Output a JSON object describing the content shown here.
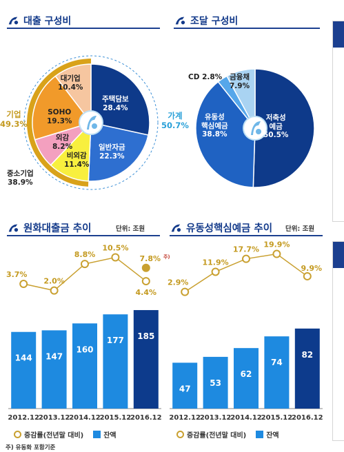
{
  "colors": {
    "navy": "#133a8a",
    "bar_blue": "#1e8ae0",
    "bar_last": "#0d3b8c",
    "gold": "#c9a030",
    "gold_text": "#c49a20",
    "pie1_housing": "#0e3a8a",
    "pie1_general": "#2e6fd0",
    "pie1_large": "#f6c6a0",
    "pie1_soho": "#f19a2a",
    "pie1_foreign": "#f3a0bf",
    "pie1_nonforeign": "#f8ef3e",
    "pie1_sme": "#d9a21a",
    "pie2_savings": "#0e3a8a",
    "pie2_liquid": "#1f62c2",
    "pie2_cd": "#56a7ea",
    "pie2_financial": "#a9d3f2"
  },
  "sections": {
    "loan_composition": {
      "title": "대출 구성비",
      "icon": "shinhan-logo-icon"
    },
    "funding_composition": {
      "title": "조달 구성비",
      "icon": "shinhan-logo-icon"
    },
    "krw_loan_trend": {
      "title": "원화대출금 추이",
      "unit": "단위: 조원",
      "icon": "shinhan-logo-icon"
    },
    "liquid_deposit_trend": {
      "title": "유동성핵심예금 추이",
      "unit": "단위: 조원",
      "icon": "shinhan-logo-icon"
    }
  },
  "legend": {
    "growth": "증감률(전년말 대비)",
    "balance": "잔액"
  },
  "footnote": "주) 유동화 포함기준",
  "chart_data": [
    {
      "type": "pie",
      "title": "대출 구성비",
      "slices": [
        {
          "label": "주택담보",
          "value": 28.4,
          "text": "28.4%"
        },
        {
          "label": "일반자금",
          "value": 22.3,
          "text": "22.3%"
        },
        {
          "label": "비외감",
          "value": 11.4,
          "text": "11.4%"
        },
        {
          "label": "외감",
          "value": 8.2,
          "text": "8.2%"
        },
        {
          "label": "SOHO",
          "value": 19.3,
          "text": "19.3%"
        },
        {
          "label": "대기업",
          "value": 10.4,
          "text": "10.4%"
        }
      ],
      "groups": [
        {
          "label": "가계",
          "text": "50.7%"
        },
        {
          "label": "기업",
          "text": "49.3%"
        },
        {
          "label": "중소기업",
          "text": "38.9%"
        }
      ]
    },
    {
      "type": "pie",
      "title": "조달 구성비",
      "slices": [
        {
          "label": "저축성 예금",
          "value": 50.5,
          "text": "50.5%"
        },
        {
          "label": "유동성 핵심예금",
          "value": 38.8,
          "text": "38.8%"
        },
        {
          "label": "CD",
          "value": 2.8,
          "text": "2.8%"
        },
        {
          "label": "금융채",
          "value": 7.9,
          "text": "7.9%"
        }
      ]
    },
    {
      "type": "bar",
      "title": "원화대출금 추이",
      "categories": [
        "2012.12",
        "2013.12",
        "2014.12",
        "2015.12",
        "2016.12"
      ],
      "balance": [
        144,
        147,
        160,
        177,
        185
      ],
      "growth": [
        3.7,
        2.0,
        8.8,
        10.5,
        4.4
      ],
      "growth_labels": [
        "3.7%",
        "2.0%",
        "8.8%",
        "10.5%",
        "4.4%"
      ],
      "extra_point": {
        "category": "2016.12",
        "value": 7.8,
        "text": "7.8%",
        "note": "주)"
      }
    },
    {
      "type": "bar",
      "title": "유동성핵심예금 추이",
      "categories": [
        "2012.12",
        "2013.12",
        "2014.12",
        "2015.12",
        "2016.12"
      ],
      "balance": [
        47,
        53,
        62,
        74,
        82
      ],
      "growth": [
        2.9,
        11.9,
        17.7,
        19.9,
        9.9
      ],
      "growth_labels": [
        "2.9%",
        "11.9%",
        "17.7%",
        "19.9%",
        "9.9%"
      ]
    }
  ]
}
